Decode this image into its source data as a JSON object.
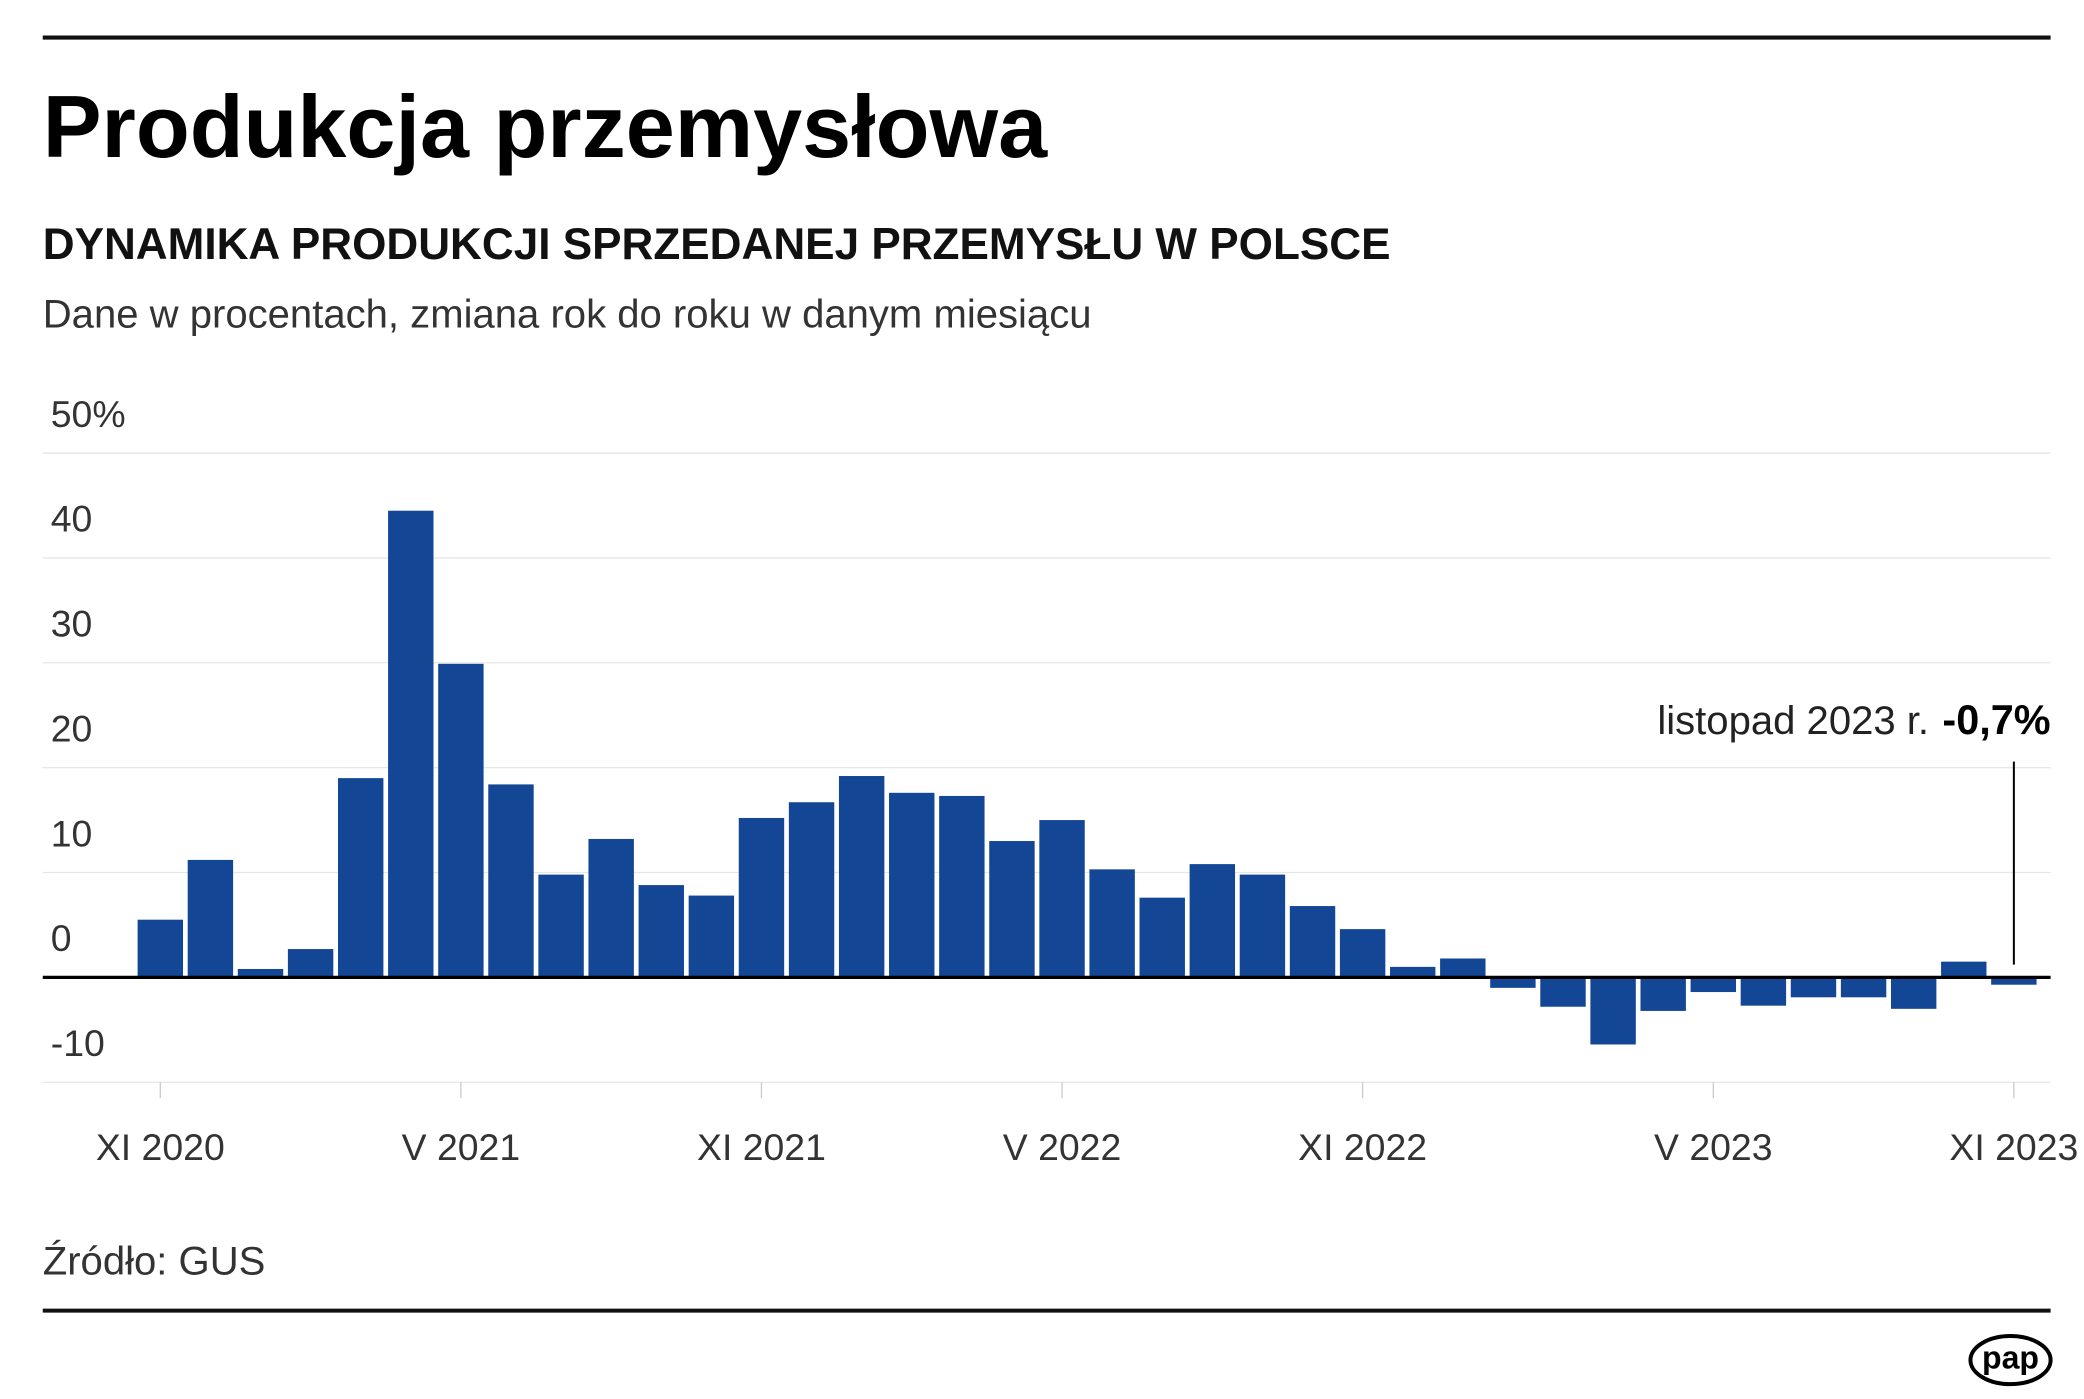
{
  "chart_data": {
    "type": "bar",
    "title": "Produkcja przemysłowa",
    "subtitle": "DYNAMIKA PRODUKCJI SPRZEDANEJ PRZEMYSŁU W POLSCE",
    "description": "Dane w procentach, zmiana rok do roku w danym miesiącu",
    "source": "Źródło: GUS",
    "logo": "pap",
    "annotation": {
      "text": "listopad 2023 r.",
      "value_text": "-0,7%"
    },
    "categories": [
      "XI 2020",
      null,
      null,
      null,
      null,
      null,
      "V 2021",
      null,
      null,
      null,
      null,
      null,
      "XI 2021",
      null,
      null,
      null,
      null,
      null,
      "V 2022",
      null,
      null,
      null,
      null,
      null,
      "XI 2022",
      null,
      null,
      null,
      null,
      null,
      null,
      "V 2023",
      null,
      null,
      null,
      null,
      null,
      "XI 2023"
    ],
    "values": [
      5.5,
      11.2,
      0.8,
      2.7,
      19.0,
      44.5,
      29.9,
      18.4,
      9.8,
      13.2,
      8.8,
      7.8,
      15.2,
      16.7,
      19.2,
      17.6,
      17.3,
      13.0,
      15.0,
      10.3,
      7.6,
      10.8,
      9.8,
      6.8,
      4.6,
      1.0,
      1.8,
      -1.0,
      -2.8,
      -6.4,
      -3.2,
      -1.4,
      -2.7,
      -1.9,
      -1.9,
      -3.0,
      1.5,
      -0.7
    ],
    "color": "#134795",
    "ylim": [
      -10,
      50
    ],
    "yticks": [
      -10,
      0,
      10,
      20,
      30,
      40,
      {
        "value": 50,
        "label": "50%"
      }
    ],
    "grid": true
  }
}
